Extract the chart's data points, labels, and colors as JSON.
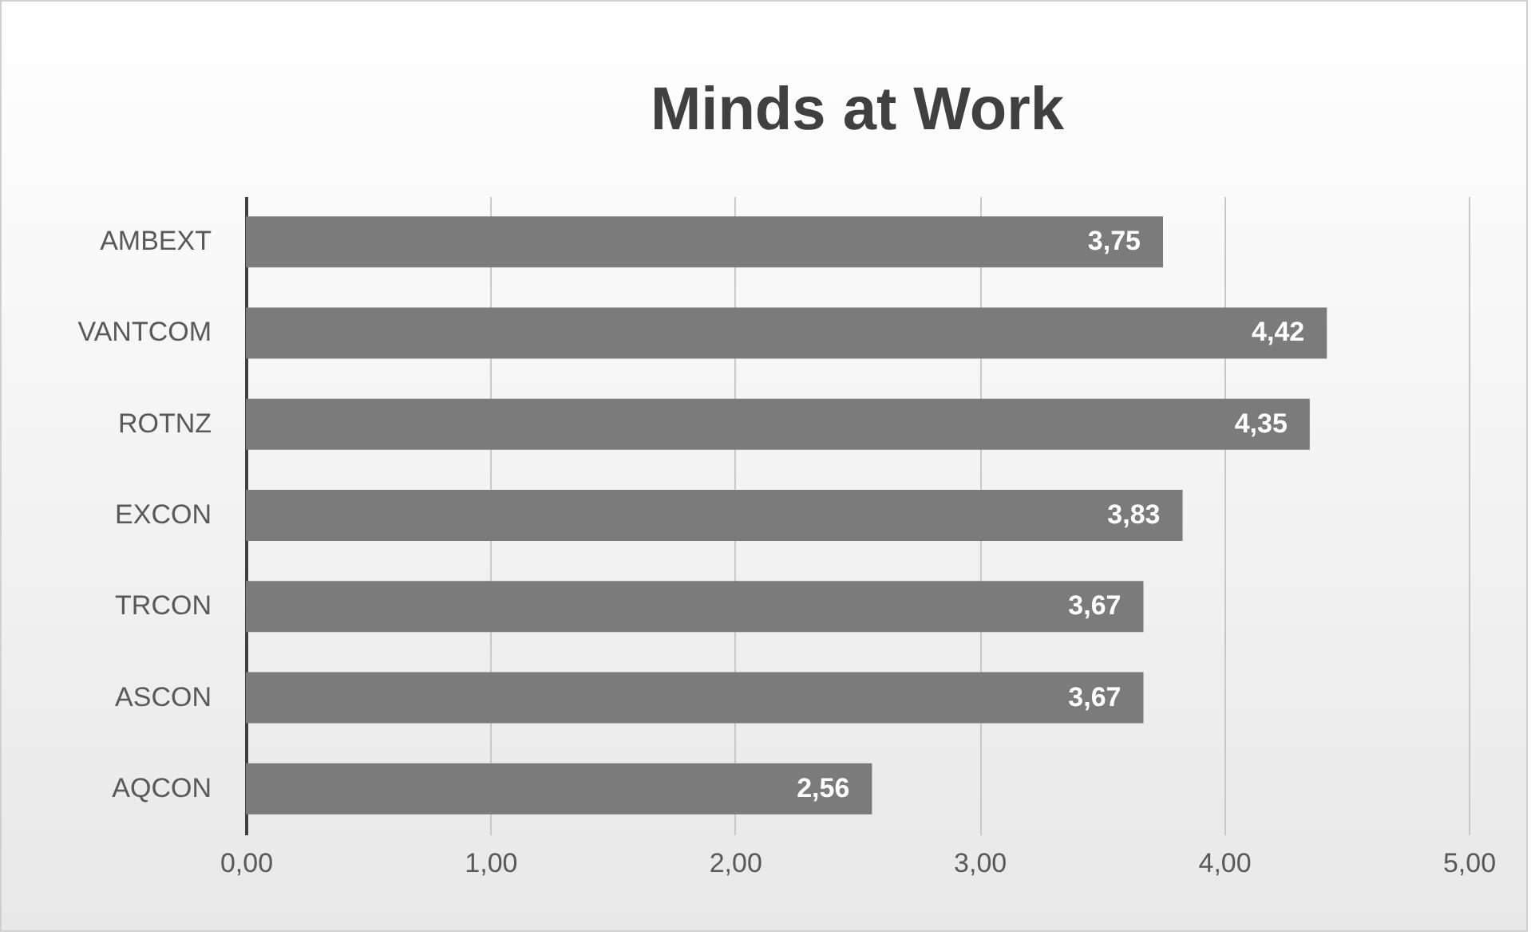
{
  "chart_data": {
    "type": "bar",
    "orientation": "horizontal",
    "title": "Minds at Work",
    "categories": [
      "AMBEXT",
      "VANTCOM",
      "ROTNZ",
      "EXCON",
      "TRCON",
      "ASCON",
      "AQCON"
    ],
    "values": [
      3.75,
      4.42,
      4.35,
      3.83,
      3.67,
      3.67,
      2.56
    ],
    "value_labels": [
      "3,75",
      "4,42",
      "4,35",
      "3,83",
      "3,67",
      "3,67",
      "2,56"
    ],
    "color": "#7b7b7b",
    "xlim": [
      0,
      5
    ],
    "xticks": [
      {
        "value": 0,
        "label": "0,00"
      },
      {
        "value": 1,
        "label": "1,00"
      },
      {
        "value": 2,
        "label": "2,00"
      },
      {
        "value": 3,
        "label": "3,00"
      },
      {
        "value": 4,
        "label": "4,00"
      },
      {
        "value": 5,
        "label": "5,00"
      }
    ],
    "grid": "x"
  }
}
